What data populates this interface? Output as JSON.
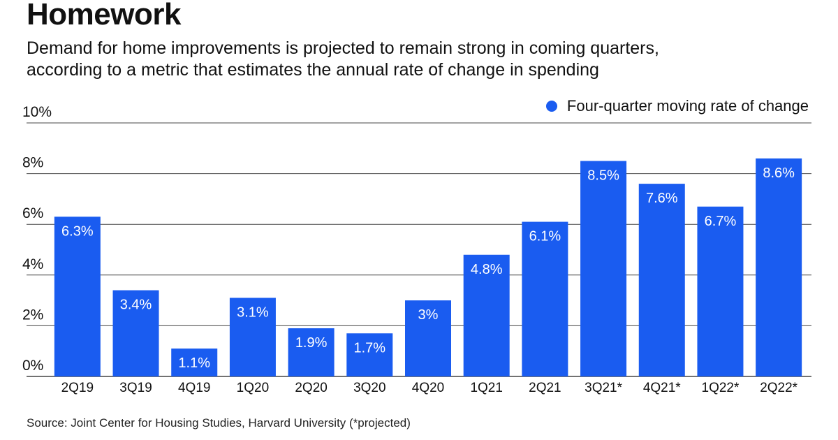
{
  "header": {
    "title": "Homework",
    "subtitle_line1": "Demand for home improvements is projected to remain strong in coming quarters,",
    "subtitle_line2": "according to a metric that estimates the annual rate of change in spending"
  },
  "legend": {
    "label": "Four-quarter moving rate of change",
    "color": "#1a5cf0"
  },
  "source": "Source: Joint Center for Housing Studies, Harvard University (*projected)",
  "chart_data": {
    "type": "bar",
    "categories": [
      "2Q19",
      "3Q19",
      "4Q19",
      "1Q20",
      "2Q20",
      "3Q20",
      "4Q20",
      "1Q21",
      "2Q21",
      "3Q21*",
      "4Q21*",
      "1Q22*",
      "2Q22*"
    ],
    "series": [
      {
        "name": "Four-quarter moving rate of change",
        "values": [
          6.3,
          3.4,
          1.1,
          3.1,
          1.9,
          1.7,
          3.0,
          4.8,
          6.1,
          8.5,
          7.6,
          6.7,
          8.6
        ],
        "labels": [
          "6.3%",
          "3.4%",
          "1.1%",
          "3.1%",
          "1.9%",
          "1.7%",
          "3%",
          "4.8%",
          "6.1%",
          "8.5%",
          "7.6%",
          "6.7%",
          "8.6%"
        ]
      }
    ],
    "yticks": [
      0,
      2,
      4,
      6,
      8,
      10
    ],
    "ytick_labels": [
      "0%",
      "2%",
      "4%",
      "6%",
      "8%",
      "10%"
    ],
    "ylim": [
      0,
      10
    ],
    "grid": true,
    "legend_position": "top-right",
    "bar_color": "#1a5cf0",
    "grid_color": "#444444"
  }
}
